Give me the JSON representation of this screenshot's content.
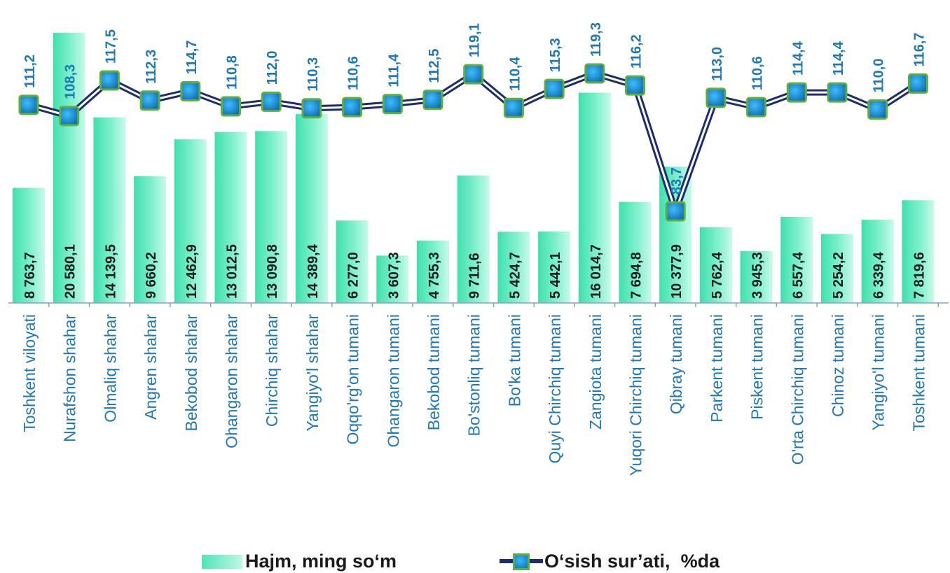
{
  "chart_data": {
    "type": "bar",
    "categories": [
      "Toshkent viloyati",
      "Nurafshon shahar",
      "Olmaliq shahar",
      "Angren shahar",
      "Bekobod shahar",
      "Ohangaron shahar",
      "Chirchiq shahar",
      "Yangiyo'l shahar",
      "Oqqo'rg'on tumani",
      "Ohangaron tumani",
      "Bekobod tumani",
      "Bo'stonliq tumani",
      "Bo'ka tumani",
      "Quyi Chirchiq tumani",
      "Zangiota tumani",
      "Yuqori Chirchiq tumani",
      "Qibray tumani",
      "Parkent tumani",
      "Piskent tumani",
      "O'rta Chirchiq tumani",
      "Chinoz tumani",
      "Yangiyo'l tumani",
      "Toshkent tumani"
    ],
    "series": [
      {
        "name": "Hajm, ming so‘m",
        "type": "bar",
        "color": "#4ce6b6",
        "values": [
          8763.7,
          20580.1,
          14139.5,
          9660.2,
          12462.9,
          13012.5,
          13090.8,
          14389.4,
          6277.0,
          3607.3,
          4755.3,
          9711.6,
          5424.7,
          5442.1,
          16014.7,
          7694.8,
          10377.9,
          5762.4,
          3945.3,
          6557.4,
          5254.2,
          6339.4,
          7819.6
        ],
        "labels": [
          "8 763,7",
          "20 580,1",
          "14 139,5",
          "9 660,2",
          "12 462,9",
          "13 012,5",
          "13 090,8",
          "14 389,4",
          "6 277,0",
          "3 607,3",
          "4 755,3",
          "9 711,6",
          "5 424,7",
          "5 442,1",
          "16 014,7",
          "7 694,8",
          "10 377,9",
          "5 762,4",
          "3 945,3",
          "6 557,4",
          "5 254,2",
          "6 339,4",
          "7 819,6"
        ]
      },
      {
        "name": "O‘sish sur’ati,  %da",
        "type": "line",
        "color": "#1d2d6b",
        "marker_color": "#1a8fdc",
        "values": [
          111.2,
          108.3,
          117.5,
          112.3,
          114.7,
          110.8,
          112.0,
          110.3,
          110.6,
          111.4,
          112.5,
          119.1,
          110.4,
          115.3,
          119.3,
          116.2,
          83.7,
          113.0,
          110.6,
          114.4,
          114.4,
          110.0,
          116.7
        ],
        "labels": [
          "111,2",
          "108,3",
          "117,5",
          "112,3",
          "114,7",
          "110,8",
          "112,0",
          "110,3",
          "110,6",
          "111,4",
          "112,5",
          "119,1",
          "110,4",
          "115,3",
          "119,3",
          "116,2",
          "83,7",
          "113,0",
          "110,6",
          "114,4",
          "114,4",
          "110,0",
          "116,7"
        ]
      }
    ],
    "label_color": "#1f78b4",
    "legend": "bottom",
    "grid": false
  },
  "legend": {
    "bar_label": "Hajm, ming so‘m",
    "line_label": "O‘sish sur’ati,  %da"
  }
}
